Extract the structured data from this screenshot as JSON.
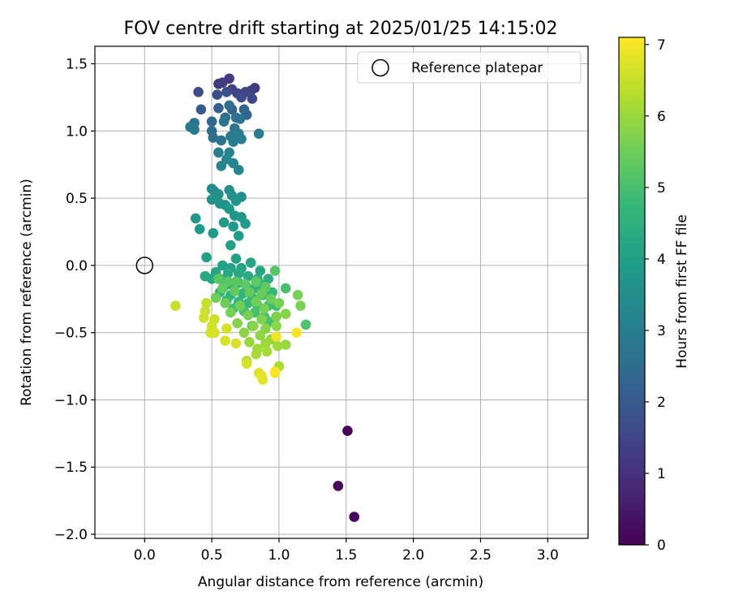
{
  "chart_data": {
    "type": "scatter",
    "title": "FOV centre drift starting at 2025/01/25 14:15:02",
    "xlabel": "Angular distance from reference (arcmin)",
    "ylabel": "Rotation from reference (arcmin)",
    "xlim": [
      -0.37,
      3.3
    ],
    "ylim": [
      -2.03,
      1.63
    ],
    "xticks": [
      0.0,
      0.5,
      1.0,
      1.5,
      2.0,
      2.5,
      3.0
    ],
    "xtick_labels": [
      "0.0",
      "0.5",
      "1.0",
      "1.5",
      "2.0",
      "2.5",
      "3.0"
    ],
    "yticks": [
      -2.0,
      -1.5,
      -1.0,
      -0.5,
      0.0,
      0.5,
      1.0,
      1.5
    ],
    "ytick_labels": [
      "−2.0",
      "−1.5",
      "−1.0",
      "−0.5",
      "0.0",
      "0.5",
      "1.0",
      "1.5"
    ],
    "grid": true,
    "legend": {
      "placement": "top-right",
      "entries": [
        {
          "label": "Reference platepar",
          "marker": "open-circle"
        }
      ]
    },
    "reference": {
      "x": 0.0,
      "y": 0.0
    },
    "colorbar": {
      "label": "Hours from first FF file",
      "colormap": "viridis",
      "range": [
        0,
        7.1
      ],
      "ticks": [
        0,
        1,
        2,
        3,
        4,
        5,
        6,
        7
      ],
      "tick_labels": [
        "0",
        "1",
        "2",
        "3",
        "4",
        "5",
        "6",
        "7"
      ],
      "colors": [
        "#440154",
        "#482878",
        "#3e4989",
        "#31688e",
        "#26828e",
        "#1f9e89",
        "#35b779",
        "#6ece58",
        "#b5de2b",
        "#fde725"
      ]
    },
    "points": [
      [
        1.51,
        -1.23,
        0.05
      ],
      [
        1.44,
        -1.64,
        0.1
      ],
      [
        1.56,
        -1.87,
        0.12
      ],
      [
        0.55,
        1.35,
        1.2
      ],
      [
        0.63,
        1.39,
        1.3
      ],
      [
        0.58,
        1.36,
        1.35
      ],
      [
        0.65,
        1.31,
        1.4
      ],
      [
        0.69,
        1.28,
        1.5
      ],
      [
        0.75,
        1.29,
        1.45
      ],
      [
        0.79,
        1.3,
        1.5
      ],
      [
        0.82,
        1.32,
        1.3
      ],
      [
        0.8,
        1.24,
        1.55
      ],
      [
        0.4,
        1.29,
        1.6
      ],
      [
        0.54,
        1.27,
        1.7
      ],
      [
        0.72,
        1.25,
        1.65
      ],
      [
        0.61,
        1.29,
        1.75
      ],
      [
        0.42,
        1.16,
        2.0
      ],
      [
        0.55,
        1.17,
        2.1
      ],
      [
        0.65,
        1.16,
        2.2
      ],
      [
        0.74,
        1.16,
        2.3
      ],
      [
        0.76,
        1.12,
        2.35
      ],
      [
        0.63,
        1.19,
        2.6
      ],
      [
        0.6,
        1.1,
        2.5
      ],
      [
        0.68,
        1.1,
        2.65
      ],
      [
        0.71,
        1.09,
        2.7
      ],
      [
        0.37,
        1.06,
        2.7
      ],
      [
        0.5,
        1.07,
        2.4
      ],
      [
        0.59,
        1.07,
        2.75
      ],
      [
        0.67,
        1.02,
        2.8
      ],
      [
        0.34,
        1.03,
        2.85
      ],
      [
        0.37,
        1.01,
        2.9
      ],
      [
        0.5,
        1.0,
        2.5
      ],
      [
        0.51,
        0.95,
        2.6
      ],
      [
        0.57,
        0.93,
        2.7
      ],
      [
        0.64,
        0.96,
        2.9
      ],
      [
        0.66,
        0.92,
        2.95
      ],
      [
        0.7,
        0.98,
        3.0
      ],
      [
        0.72,
        0.94,
        3.05
      ],
      [
        0.85,
        0.98,
        3.0
      ],
      [
        0.55,
        0.84,
        3.1
      ],
      [
        0.63,
        0.84,
        3.15
      ],
      [
        0.61,
        0.79,
        3.2
      ],
      [
        0.57,
        0.74,
        3.25
      ],
      [
        0.66,
        0.76,
        3.25
      ],
      [
        0.7,
        0.71,
        3.3
      ],
      [
        0.5,
        0.57,
        3.4
      ],
      [
        0.52,
        0.55,
        3.5
      ],
      [
        0.55,
        0.53,
        3.55
      ],
      [
        0.63,
        0.56,
        3.5
      ],
      [
        0.65,
        0.52,
        3.6
      ],
      [
        0.72,
        0.51,
        3.55
      ],
      [
        0.5,
        0.49,
        3.6
      ],
      [
        0.56,
        0.46,
        3.65
      ],
      [
        0.6,
        0.45,
        3.7
      ],
      [
        0.68,
        0.48,
        3.7
      ],
      [
        0.63,
        0.42,
        3.75
      ],
      [
        0.67,
        0.37,
        3.8
      ],
      [
        0.72,
        0.36,
        3.75
      ],
      [
        0.38,
        0.35,
        3.8
      ],
      [
        0.59,
        0.32,
        3.85
      ],
      [
        0.41,
        0.27,
        3.85
      ],
      [
        0.51,
        0.24,
        3.9
      ],
      [
        0.66,
        0.29,
        3.9
      ],
      [
        0.75,
        0.31,
        3.9
      ],
      [
        0.7,
        0.22,
        3.95
      ],
      [
        0.64,
        0.15,
        4.0
      ],
      [
        0.46,
        0.06,
        4.05
      ],
      [
        0.68,
        0.05,
        4.05
      ],
      [
        0.58,
        0.0,
        4.1
      ],
      [
        0.64,
        -0.02,
        4.1
      ],
      [
        0.72,
        -0.02,
        4.15
      ],
      [
        0.79,
        0.02,
        4.15
      ],
      [
        0.53,
        -0.05,
        4.2
      ],
      [
        0.62,
        -0.06,
        4.25
      ],
      [
        0.7,
        -0.06,
        4.25
      ],
      [
        0.86,
        -0.04,
        4.2
      ],
      [
        0.45,
        -0.08,
        4.3
      ],
      [
        0.5,
        -0.1,
        4.3
      ],
      [
        0.56,
        -0.1,
        4.35
      ],
      [
        0.77,
        -0.08,
        4.35
      ],
      [
        0.84,
        -0.1,
        4.4
      ],
      [
        0.92,
        -0.1,
        4.4
      ],
      [
        0.6,
        -0.15,
        4.45
      ],
      [
        0.66,
        -0.15,
        4.45
      ],
      [
        0.7,
        -0.13,
        4.5
      ],
      [
        0.76,
        -0.16,
        4.5
      ],
      [
        0.82,
        -0.17,
        4.55
      ],
      [
        0.86,
        -0.14,
        4.55
      ],
      [
        0.56,
        -0.2,
        4.6
      ],
      [
        0.64,
        -0.22,
        4.6
      ],
      [
        0.73,
        -0.21,
        4.65
      ],
      [
        0.8,
        -0.24,
        4.65
      ],
      [
        0.88,
        -0.22,
        4.7
      ],
      [
        0.95,
        -0.2,
        4.7
      ],
      [
        0.61,
        -0.26,
        4.75
      ],
      [
        0.7,
        -0.27,
        4.75
      ],
      [
        0.77,
        -0.28,
        4.8
      ],
      [
        0.84,
        -0.3,
        4.8
      ],
      [
        0.92,
        -0.3,
        4.85
      ],
      [
        0.98,
        -0.3,
        4.9
      ],
      [
        1.05,
        -0.17,
        5.0
      ],
      [
        0.66,
        -0.32,
        4.9
      ],
      [
        0.74,
        -0.34,
        4.95
      ],
      [
        0.82,
        -0.35,
        5.0
      ],
      [
        0.89,
        -0.38,
        5.0
      ],
      [
        0.95,
        -0.42,
        4.95
      ],
      [
        0.8,
        -0.45,
        5.05
      ],
      [
        0.9,
        -0.4,
        5.05
      ],
      [
        1.2,
        -0.44,
        5.1
      ],
      [
        0.55,
        -0.1,
        5.2
      ],
      [
        0.62,
        -0.12,
        5.25
      ],
      [
        0.68,
        -0.12,
        5.25
      ],
      [
        0.75,
        -0.14,
        5.3
      ],
      [
        0.83,
        -0.12,
        5.3
      ],
      [
        0.9,
        -0.16,
        5.35
      ],
      [
        0.97,
        -0.04,
        5.2
      ],
      [
        0.58,
        -0.17,
        5.35
      ],
      [
        0.67,
        -0.19,
        5.4
      ],
      [
        0.78,
        -0.2,
        5.4
      ],
      [
        0.87,
        -0.21,
        5.45
      ],
      [
        0.94,
        -0.25,
        5.45
      ],
      [
        0.53,
        -0.24,
        5.5
      ],
      [
        0.6,
        -0.28,
        5.5
      ],
      [
        0.71,
        -0.3,
        5.55
      ],
      [
        0.83,
        -0.27,
        5.55
      ],
      [
        0.89,
        -0.32,
        5.6
      ],
      [
        1.0,
        -0.28,
        5.6
      ],
      [
        1.14,
        -0.22,
        5.6
      ],
      [
        1.16,
        -0.3,
        5.65
      ],
      [
        0.64,
        -0.35,
        5.6
      ],
      [
        0.77,
        -0.37,
        5.65
      ],
      [
        0.87,
        -0.4,
        5.7
      ],
      [
        0.98,
        -0.38,
        5.7
      ],
      [
        1.05,
        -0.36,
        5.75
      ],
      [
        0.69,
        -0.43,
        5.75
      ],
      [
        0.81,
        -0.45,
        5.8
      ],
      [
        0.9,
        -0.47,
        5.8
      ],
      [
        0.98,
        -0.45,
        5.85
      ],
      [
        0.74,
        -0.5,
        5.85
      ],
      [
        0.86,
        -0.52,
        5.9
      ],
      [
        0.94,
        -0.55,
        5.95
      ],
      [
        1.05,
        -0.59,
        6.0
      ],
      [
        0.78,
        -0.57,
        6.0
      ],
      [
        0.9,
        -0.58,
        6.05
      ],
      [
        0.99,
        -0.6,
        6.05
      ],
      [
        0.84,
        -0.62,
        6.1
      ],
      [
        0.83,
        -0.66,
        6.15
      ],
      [
        0.91,
        -0.64,
        6.15
      ],
      [
        1.0,
        -0.75,
        6.2
      ],
      [
        0.76,
        -0.71,
        6.25
      ],
      [
        0.23,
        -0.3,
        6.5
      ],
      [
        0.46,
        -0.28,
        6.5
      ],
      [
        0.45,
        -0.34,
        6.55
      ],
      [
        0.44,
        -0.39,
        6.6
      ],
      [
        0.52,
        -0.4,
        6.55
      ],
      [
        0.5,
        -0.45,
        6.6
      ],
      [
        0.61,
        -0.47,
        6.65
      ],
      [
        0.49,
        -0.5,
        6.65
      ],
      [
        0.52,
        -0.5,
        6.7
      ],
      [
        0.6,
        -0.56,
        6.65
      ],
      [
        0.68,
        -0.58,
        6.7
      ],
      [
        0.76,
        -0.73,
        6.7
      ],
      [
        0.85,
        -0.8,
        6.75
      ],
      [
        0.87,
        -0.82,
        6.8
      ],
      [
        0.88,
        -0.85,
        6.85
      ],
      [
        0.97,
        -0.8,
        6.9
      ],
      [
        0.98,
        -0.53,
        6.95
      ],
      [
        1.13,
        -0.5,
        7.0
      ],
      [
        0.97,
        -0.79,
        7.05
      ]
    ]
  }
}
